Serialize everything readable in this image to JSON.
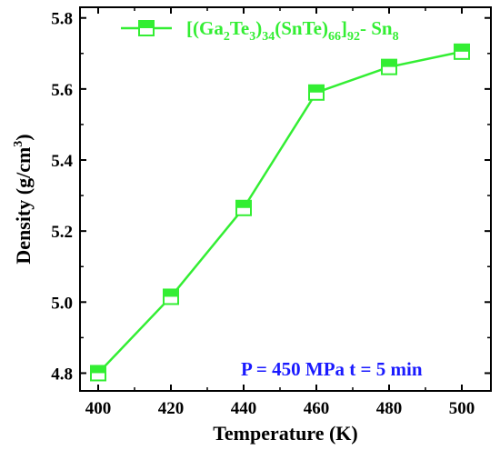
{
  "chart_data": {
    "type": "line",
    "x": [
      400,
      420,
      440,
      460,
      480,
      500
    ],
    "series": [
      {
        "name_parts": [
          "[(Ga",
          "2",
          "Te",
          "3",
          ")",
          "34",
          "(SnTe)",
          "66",
          "]",
          "92",
          "- Sn",
          "8"
        ],
        "values": [
          4.8,
          5.015,
          5.265,
          5.59,
          5.662,
          5.705
        ],
        "color": "#33ee33"
      }
    ],
    "xlabel": "Temperature (K)",
    "ylabel_main": "Density  (g/cm",
    "ylabel_sup": "3",
    "ylabel_end": ")",
    "xlim": [
      395,
      508
    ],
    "ylim": [
      4.75,
      5.83
    ],
    "xticks": [
      "400",
      "420",
      "440",
      "460",
      "480",
      "500"
    ],
    "yticks": [
      "4.8",
      "5.0",
      "5.2",
      "5.4",
      "5.6",
      "5.8"
    ],
    "annotation": "P = 450 MPa  t = 5 min",
    "annotation_color": "#1a1aff",
    "legend_position": "top-left",
    "grid": false,
    "marker": "half-filled-square"
  }
}
